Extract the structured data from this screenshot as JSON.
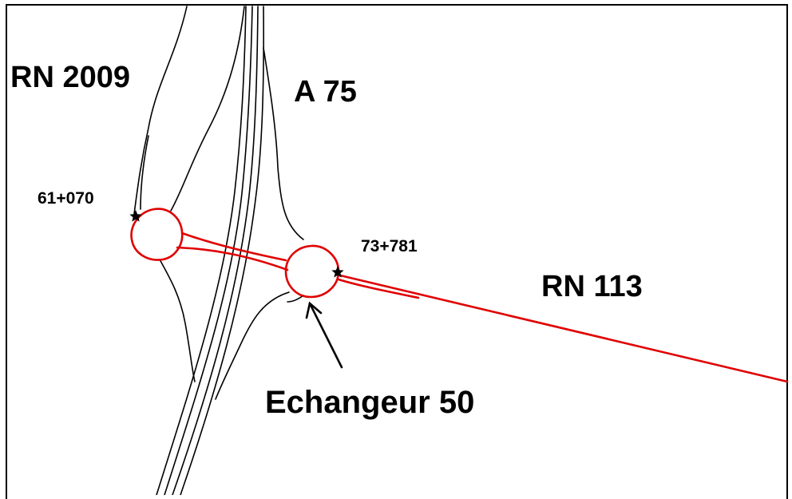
{
  "map": {
    "roads": {
      "rn2009": "RN 2009",
      "a75": "A 75",
      "rn113": "RN 113"
    },
    "markers": {
      "pk_left": "61+070",
      "pk_right": "73+781"
    },
    "callout": "Echangeur 50",
    "colors": {
      "highlight": "#e00000",
      "linework": "#000000",
      "background": "#ffffff"
    },
    "icons": {
      "marker": "star-icon",
      "pointer": "arrow-icon"
    }
  }
}
